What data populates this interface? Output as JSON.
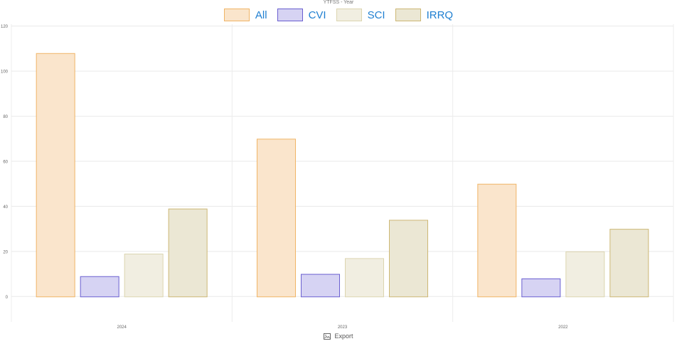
{
  "chart_data": {
    "type": "bar",
    "title": "YTFSS - Year",
    "categories": [
      "2024",
      "2023",
      "2022"
    ],
    "series": [
      {
        "name": "All",
        "values": [
          108,
          70,
          50
        ],
        "fill": "#fae5cc",
        "stroke": "#f0b466"
      },
      {
        "name": "CVI",
        "values": [
          9,
          10,
          8
        ],
        "fill": "#d6d3f3",
        "stroke": "#6a5fd0"
      },
      {
        "name": "SCI",
        "values": [
          19,
          17,
          20
        ],
        "fill": "#f1eee1",
        "stroke": "#dcd5b0"
      },
      {
        "name": "IRRQ",
        "values": [
          39,
          34,
          30
        ],
        "fill": "#ebe7d4",
        "stroke": "#cdb774"
      }
    ],
    "ylim": [
      -10,
      130
    ],
    "yticks": [
      0,
      20,
      40,
      60,
      80,
      100,
      120
    ],
    "xlabel": "",
    "ylabel": "",
    "grid": true,
    "legend_position": "top-center"
  },
  "export": {
    "label": "Export",
    "icon": "image-icon"
  }
}
